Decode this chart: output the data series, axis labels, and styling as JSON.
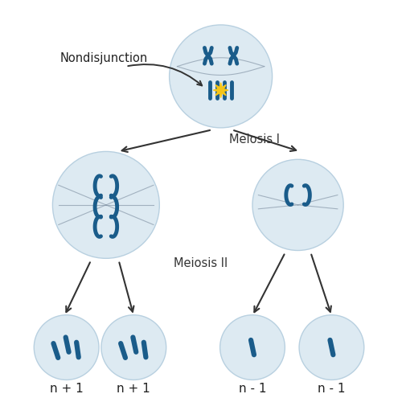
{
  "bg_color": "#ffffff",
  "cell_color": "#ddeaf2",
  "cell_edge_color": "#b8d0e0",
  "chrom_color": "#1a5c8a",
  "spindle_color": "#8899aa",
  "flash_color": "#f5c518",
  "label_nondisjunction": "Nondisjunction",
  "label_meiosis1": "Meiosis I",
  "label_meiosis2": "Meiosis II",
  "labels_bottom": [
    "n + 1",
    "n + 1",
    "n - 1",
    "n - 1"
  ],
  "font_size_labels": 11
}
